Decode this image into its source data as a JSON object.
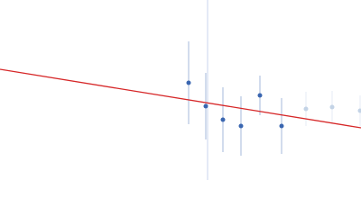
{
  "chart_data": {
    "type": "scatter",
    "xlim": [
      0,
      400
    ],
    "ylim": [
      0,
      200
    ],
    "series": [
      {
        "color": "#3a66b0",
        "x": [
          209,
          228,
          247,
          267,
          288,
          312
        ],
        "values": [
          108,
          82,
          67,
          60,
          94,
          60
        ],
        "errors": [
          46,
          37,
          36,
          33,
          22,
          31
        ]
      },
      {
        "color": "#c3d3e6",
        "x": [
          339,
          368,
          399
        ],
        "values": [
          79,
          81,
          77
        ],
        "errors": [
          19,
          18,
          17
        ]
      }
    ],
    "fit": {
      "color": "#d62728",
      "x": [
        0,
        400
      ],
      "values": [
        123,
        58
      ]
    }
  }
}
